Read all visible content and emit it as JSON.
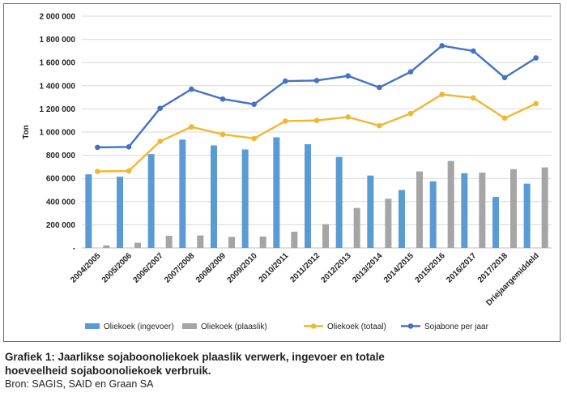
{
  "chart_data": {
    "type": "bar",
    "ylabel": "Ton",
    "ylim": [
      0,
      2000000
    ],
    "y_ticks": [
      "2 000 000",
      "1 800 000",
      "1 600 000",
      "1 400 000",
      "1 200 000",
      "1 000 000",
      "800 000",
      "600 000",
      "400 000",
      "200 000",
      "-"
    ],
    "categories": [
      "2004/2005",
      "2005/2006",
      "2006/2007",
      "2007/2008",
      "2008/2009",
      "2009/2010",
      "2010/2011",
      "2011/2012",
      "2012/2013",
      "2013/2014",
      "2014/2015",
      "2015/2016",
      "2016/2017",
      "2017/2018",
      "Driejaargemiddeld"
    ],
    "grid": true,
    "legend_position": "bottom",
    "series": [
      {
        "name": "Oliekoek (ingevoer)",
        "type": "bar",
        "color": "#5b9bd5",
        "values": [
          635000,
          615000,
          810000,
          935000,
          885000,
          850000,
          955000,
          895000,
          785000,
          625000,
          500000,
          575000,
          645000,
          440000,
          555000
        ]
      },
      {
        "name": "Oliekoek (plaaslik)",
        "type": "bar",
        "color": "#a5a5a5",
        "values": [
          22000,
          45000,
          105000,
          108000,
          95000,
          98000,
          140000,
          205000,
          345000,
          425000,
          660000,
          750000,
          650000,
          680000,
          695000
        ]
      },
      {
        "name": "Oliekoek (totaal)",
        "type": "line",
        "color": "#f2b631",
        "values": [
          660000,
          665000,
          920000,
          1045000,
          980000,
          945000,
          1095000,
          1100000,
          1130000,
          1055000,
          1160000,
          1325000,
          1295000,
          1120000,
          1245000
        ]
      },
      {
        "name": "Sojabone per jaar",
        "type": "line",
        "color": "#4472c4",
        "values": [
          868000,
          872000,
          1205000,
          1370000,
          1285000,
          1240000,
          1440000,
          1445000,
          1485000,
          1385000,
          1520000,
          1745000,
          1700000,
          1470000,
          1640000
        ]
      }
    ]
  },
  "caption": {
    "title_line1": "Grafiek 1: Jaarlikse sojaboonoliekoek plaaslik verwerk, ingevoer en totale",
    "title_line2": "hoeveelheid sojaboonoliekoek verbruik.",
    "source": "Bron: SAGIS, SAID en Graan SA"
  }
}
